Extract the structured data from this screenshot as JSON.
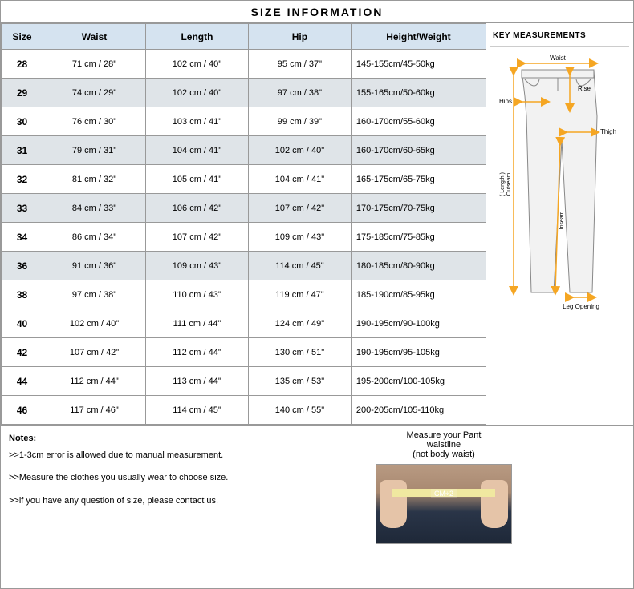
{
  "title": "SIZE  INFORMATION",
  "table": {
    "columns": [
      "Size",
      "Waist",
      "Length",
      "Hip",
      "Height/Weight"
    ],
    "rows": [
      {
        "size": "28",
        "waist": "71 cm /    28\"",
        "length": "102  cm /    40\"",
        "hip": "95 cm /   37\"",
        "hw": "145-155cm/45-50kg",
        "alt": false
      },
      {
        "size": "29",
        "waist": "74 cm /    29\"",
        "length": "102  cm /    40\"",
        "hip": "97 cm /   38\"",
        "hw": "155-165cm/50-60kg",
        "alt": true
      },
      {
        "size": "30",
        "waist": "76 cm /    30\"",
        "length": "103  cm /    41\"",
        "hip": "99 cm /   39\"",
        "hw": "160-170cm/55-60kg",
        "alt": false
      },
      {
        "size": "31",
        "waist": "79 cm /    31\"",
        "length": "104  cm /    41\"",
        "hip": "102 cm /   40\"",
        "hw": "160-170cm/60-65kg",
        "alt": true
      },
      {
        "size": "32",
        "waist": "81 cm /    32\"",
        "length": "105  cm /    41\"",
        "hip": "104 cm /   41\"",
        "hw": "165-175cm/65-75kg",
        "alt": false
      },
      {
        "size": "33",
        "waist": "84 cm /    33\"",
        "length": "106  cm /    42\"",
        "hip": "107 cm /   42\"",
        "hw": "170-175cm/70-75kg",
        "alt": true
      },
      {
        "size": "34",
        "waist": "86 cm /    34\"",
        "length": "107  cm /    42\"",
        "hip": "109 cm /   43\"",
        "hw": "175-185cm/75-85kg",
        "alt": false
      },
      {
        "size": "36",
        "waist": "91 cm /    36\"",
        "length": "109  cm /    43\"",
        "hip": "114 cm /   45\"",
        "hw": "180-185cm/80-90kg",
        "alt": true
      },
      {
        "size": "38",
        "waist": "97 cm /    38\"",
        "length": "110  cm /    43\"",
        "hip": "119 cm /   47\"",
        "hw": "185-190cm/85-95kg",
        "alt": false
      },
      {
        "size": "40",
        "waist": "102 cm /    40\"",
        "length": "111  cm /    44\"",
        "hip": "124 cm /   49\"",
        "hw": "190-195cm/90-100kg",
        "alt": false
      },
      {
        "size": "42",
        "waist": "107 cm /    42\"",
        "length": "112  cm /    44\"",
        "hip": "130 cm /   51\"",
        "hw": "190-195cm/95-105kg",
        "alt": false
      },
      {
        "size": "44",
        "waist": "112 cm /    44\"",
        "length": "113  cm /    44\"",
        "hip": "135 cm /   53\"",
        "hw": "195-200cm/100-105kg",
        "alt": false
      },
      {
        "size": "46",
        "waist": "117 cm /    46\"",
        "length": "114  cm /    45\"",
        "hip": "140 cm /   55\"",
        "hw": "200-205cm/105-110kg",
        "alt": false
      }
    ],
    "header_bg": "#d5e3f0",
    "alt_bg": "#dfe4e8",
    "border_color": "#999999"
  },
  "diagram": {
    "title": "KEY MEASUREMENTS",
    "labels": {
      "waist": "Waist",
      "hips": "Hips",
      "rise": "Rise",
      "thigh": "Thigh",
      "length": "( Length )",
      "outseam": "Outseam",
      "inseam": "Inseam",
      "leg_opening": "Leg Opening"
    },
    "arrow_color": "#f5a623",
    "line_color": "#888888",
    "fill_color": "#f2f2f2"
  },
  "notes": {
    "title": "Notes:",
    "items": [
      ">>1-3cm error is allowed due to manual measurement.",
      ">>Measure the clothes you usually wear to choose size.",
      ">>if you have any question of size, please contact us."
    ]
  },
  "measure": {
    "heading_line1": "Measure your Pant",
    "heading_line2": "waistline",
    "heading_line3": "(not body waist)",
    "cm_label": "CM÷2"
  }
}
